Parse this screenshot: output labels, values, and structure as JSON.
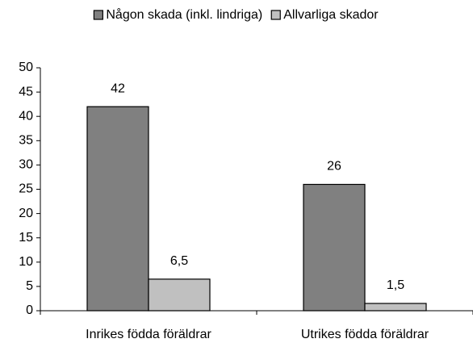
{
  "chart_data": {
    "type": "bar",
    "categories": [
      "Inrikes födda föräldrar",
      "Utrikes födda föräldrar"
    ],
    "series": [
      {
        "name": "Någon skada (inkl. lindriga)",
        "color": "#808080",
        "values": [
          42,
          26
        ],
        "value_labels": [
          "42",
          "26"
        ]
      },
      {
        "name": "Allvarliga skador",
        "color": "#c0c0c0",
        "values": [
          6.5,
          1.5
        ],
        "value_labels": [
          "6,5",
          "1,5"
        ]
      }
    ],
    "ylim": [
      0,
      50
    ],
    "yticks": [
      0,
      5,
      10,
      15,
      20,
      25,
      30,
      35,
      40,
      45,
      50
    ],
    "legend": "top",
    "grid": false
  }
}
